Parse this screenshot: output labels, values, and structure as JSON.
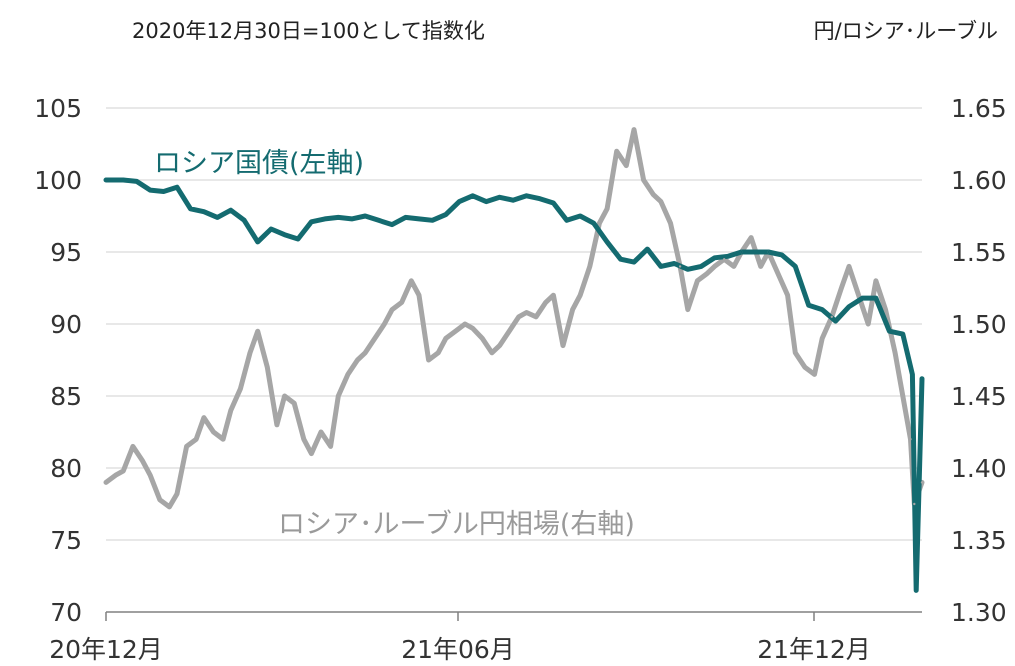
{
  "note_left": "2020年12月30日=100として指数化",
  "note_right": "円/ロシア･ルーブル",
  "chart_data": {
    "type": "line",
    "left_axis": {
      "ylim": [
        70,
        105
      ],
      "ticks": [
        105,
        100,
        95,
        90,
        85,
        80,
        75,
        70
      ]
    },
    "right_axis": {
      "ylim": [
        1.3,
        1.65
      ],
      "ticks": [
        "1.65",
        "1.60",
        "1.55",
        "1.50",
        "1.45",
        "1.40",
        "1.35",
        "1.30"
      ]
    },
    "x_ticks": [
      "20年12月",
      "21年06月",
      "21年12月"
    ],
    "grid": true,
    "colors": {
      "bond": "#146b70",
      "ruble": "#a6a6a6",
      "grid": "#d9d9d9",
      "axis": "#808080"
    },
    "series": [
      {
        "name": "ロシア国債(左軸)",
        "axis": "left",
        "x": [
          "2020-12-30",
          "2021-01-08",
          "2021-01-15",
          "2021-01-22",
          "2021-01-29",
          "2021-02-05",
          "2021-02-12",
          "2021-02-19",
          "2021-02-26",
          "2021-03-05",
          "2021-03-12",
          "2021-03-19",
          "2021-03-26",
          "2021-04-02",
          "2021-04-09",
          "2021-04-16",
          "2021-04-23",
          "2021-04-30",
          "2021-05-07",
          "2021-05-14",
          "2021-05-21",
          "2021-05-28",
          "2021-06-04",
          "2021-06-11",
          "2021-06-18",
          "2021-06-25",
          "2021-07-02",
          "2021-07-09",
          "2021-07-16",
          "2021-07-23",
          "2021-07-30",
          "2021-08-06",
          "2021-08-13",
          "2021-08-20",
          "2021-08-27",
          "2021-09-03",
          "2021-09-10",
          "2021-09-17",
          "2021-09-24",
          "2021-10-01",
          "2021-10-08",
          "2021-10-15",
          "2021-10-22",
          "2021-10-29",
          "2021-11-05",
          "2021-11-12",
          "2021-11-19",
          "2021-11-26",
          "2021-12-03",
          "2021-12-10",
          "2021-12-17",
          "2021-12-24",
          "2021-12-31",
          "2022-01-07",
          "2022-01-14",
          "2022-01-21",
          "2022-01-28",
          "2022-02-04",
          "2022-02-11",
          "2022-02-18",
          "2022-02-23",
          "2022-02-25",
          "2022-02-28"
        ],
        "values": [
          100.0,
          100.0,
          99.9,
          99.3,
          99.2,
          99.5,
          98.0,
          97.8,
          97.4,
          97.9,
          97.2,
          95.7,
          96.6,
          96.2,
          95.9,
          97.1,
          97.3,
          97.4,
          97.3,
          97.5,
          97.2,
          96.9,
          97.4,
          97.3,
          97.2,
          97.6,
          98.5,
          98.9,
          98.5,
          98.8,
          98.6,
          98.9,
          98.7,
          98.4,
          97.2,
          97.5,
          97.0,
          95.7,
          94.5,
          94.3,
          95.2,
          94.0,
          94.2,
          93.8,
          94.0,
          94.6,
          94.7,
          95.0,
          95.0,
          95.0,
          94.8,
          94.0,
          91.3,
          91.0,
          90.2,
          91.2,
          91.8,
          91.8,
          89.5,
          89.3,
          86.5,
          71.5,
          86.2
        ]
      },
      {
        "name": "ロシア･ルーブル円相場(右軸)",
        "axis": "right",
        "x": [
          "2020-12-30",
          "2021-01-04",
          "2021-01-08",
          "2021-01-13",
          "2021-01-18",
          "2021-01-22",
          "2021-01-27",
          "2021-02-01",
          "2021-02-05",
          "2021-02-10",
          "2021-02-15",
          "2021-02-19",
          "2021-02-24",
          "2021-03-01",
          "2021-03-05",
          "2021-03-10",
          "2021-03-15",
          "2021-03-19",
          "2021-03-24",
          "2021-03-29",
          "2021-04-02",
          "2021-04-07",
          "2021-04-12",
          "2021-04-16",
          "2021-04-21",
          "2021-04-26",
          "2021-04-30",
          "2021-05-05",
          "2021-05-10",
          "2021-05-14",
          "2021-05-19",
          "2021-05-24",
          "2021-05-28",
          "2021-06-02",
          "2021-06-07",
          "2021-06-11",
          "2021-06-16",
          "2021-06-21",
          "2021-06-25",
          "2021-06-30",
          "2021-07-05",
          "2021-07-09",
          "2021-07-14",
          "2021-07-19",
          "2021-07-23",
          "2021-07-28",
          "2021-08-02",
          "2021-08-06",
          "2021-08-11",
          "2021-08-16",
          "2021-08-20",
          "2021-08-25",
          "2021-08-30",
          "2021-09-03",
          "2021-09-08",
          "2021-09-13",
          "2021-09-17",
          "2021-09-22",
          "2021-09-27",
          "2021-10-01",
          "2021-10-06",
          "2021-10-11",
          "2021-10-15",
          "2021-10-20",
          "2021-10-25",
          "2021-10-29",
          "2021-11-03",
          "2021-11-08",
          "2021-11-12",
          "2021-11-17",
          "2021-11-22",
          "2021-11-26",
          "2021-12-01",
          "2021-12-06",
          "2021-12-10",
          "2021-12-15",
          "2021-12-20",
          "2021-12-24",
          "2021-12-29",
          "2022-01-03",
          "2022-01-07",
          "2022-01-12",
          "2022-01-17",
          "2022-01-21",
          "2022-01-26",
          "2022-01-31",
          "2022-02-04",
          "2022-02-09",
          "2022-02-14",
          "2022-02-18",
          "2022-02-22",
          "2022-02-24",
          "2022-02-28"
        ],
        "values": [
          1.39,
          1.395,
          1.398,
          1.415,
          1.405,
          1.395,
          1.378,
          1.373,
          1.382,
          1.415,
          1.42,
          1.435,
          1.425,
          1.42,
          1.44,
          1.455,
          1.48,
          1.495,
          1.47,
          1.43,
          1.45,
          1.445,
          1.42,
          1.41,
          1.425,
          1.415,
          1.45,
          1.465,
          1.475,
          1.48,
          1.49,
          1.5,
          1.51,
          1.515,
          1.53,
          1.52,
          1.475,
          1.48,
          1.49,
          1.495,
          1.5,
          1.497,
          1.49,
          1.48,
          1.485,
          1.495,
          1.505,
          1.508,
          1.505,
          1.515,
          1.52,
          1.485,
          1.51,
          1.52,
          1.54,
          1.57,
          1.58,
          1.62,
          1.61,
          1.635,
          1.6,
          1.59,
          1.585,
          1.57,
          1.54,
          1.51,
          1.53,
          1.535,
          1.54,
          1.545,
          1.54,
          1.55,
          1.56,
          1.54,
          1.55,
          1.535,
          1.52,
          1.48,
          1.47,
          1.465,
          1.49,
          1.505,
          1.525,
          1.54,
          1.52,
          1.5,
          1.53,
          1.51,
          1.48,
          1.45,
          1.42,
          1.375,
          1.39
        ]
      }
    ]
  }
}
